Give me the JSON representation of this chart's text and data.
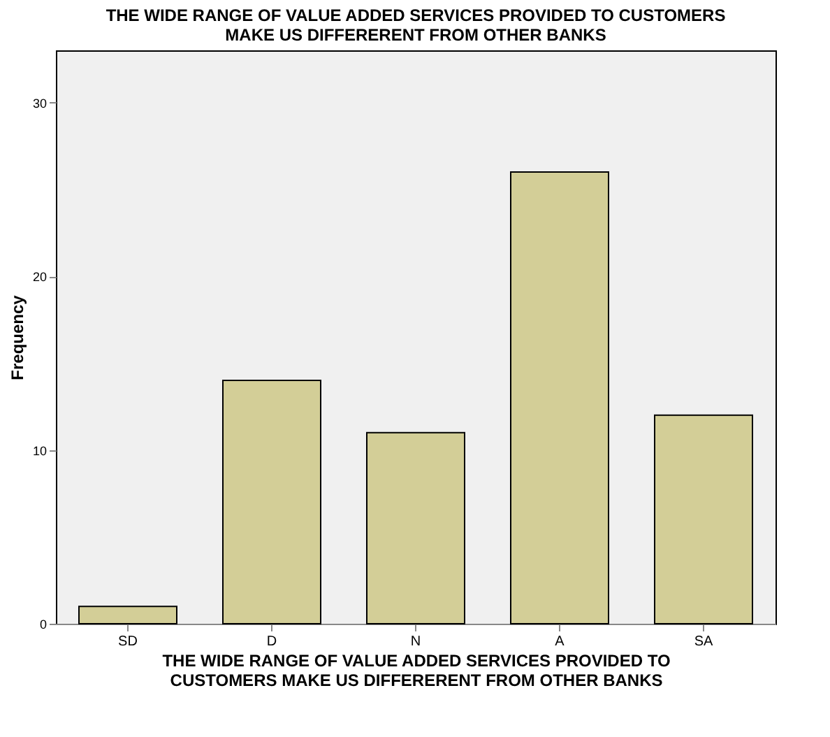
{
  "chart_data": {
    "type": "bar",
    "title": "THE WIDE RANGE OF VALUE ADDED SERVICES PROVIDED TO CUSTOMERS\nMAKE US DIFFERERENT FROM OTHER BANKS",
    "xlabel": "THE WIDE RANGE OF VALUE ADDED SERVICES PROVIDED TO\nCUSTOMERS MAKE US DIFFERERENT FROM OTHER BANKS",
    "ylabel": "Frequency",
    "categories": [
      "SD",
      "D",
      "N",
      "A",
      "SA"
    ],
    "values": [
      1,
      14,
      11,
      26,
      12
    ],
    "color": "#d3ce97",
    "ylim": [
      0,
      33
    ],
    "yticks": [
      0,
      10,
      20,
      30
    ],
    "grid": false
  }
}
